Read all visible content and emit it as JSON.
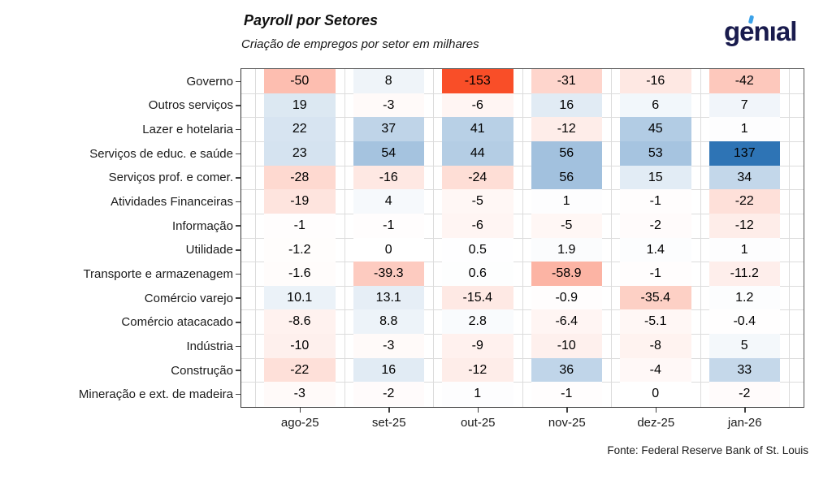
{
  "logo": {
    "text": "genıal",
    "text_color": "#191B4D",
    "accent_color": "#3BA2E9"
  },
  "chart_data": {
    "type": "heatmap",
    "title": "Payroll por Setores",
    "subtitle": "Criação de empregos por setor em milhares",
    "columns": [
      "ago-25",
      "set-25",
      "out-25",
      "nov-25",
      "dez-25",
      "jan-26"
    ],
    "rows": [
      {
        "label": "Governo",
        "values": [
          -50,
          8,
          -153,
          -31,
          -16,
          -42
        ]
      },
      {
        "label": "Outros serviços",
        "values": [
          19,
          -3,
          -6,
          16,
          6,
          7
        ]
      },
      {
        "label": "Lazer e hotelaria",
        "values": [
          22,
          37,
          41,
          -12,
          45,
          1
        ]
      },
      {
        "label": "Serviços de educ. e saúde",
        "values": [
          23,
          54,
          44,
          56,
          53,
          137
        ]
      },
      {
        "label": "Serviços prof. e comer.",
        "values": [
          -28,
          -16,
          -24,
          56,
          15,
          34
        ]
      },
      {
        "label": "Atividades Financeiras",
        "values": [
          -19,
          4,
          -5,
          1,
          -1,
          -22
        ]
      },
      {
        "label": "Informação",
        "values": [
          -1,
          -1,
          -6,
          -5,
          -2,
          -12
        ]
      },
      {
        "label": "Utilidade",
        "values": [
          -1.2,
          0,
          0.5,
          1.9,
          1.4,
          1
        ]
      },
      {
        "label": "Transporte e armazenagem",
        "values": [
          -1.6,
          -39.3,
          0.6,
          -58.9,
          -1,
          -11.2
        ]
      },
      {
        "label": "Comércio varejo",
        "values": [
          10.1,
          13.1,
          -15.4,
          -0.9,
          -35.4,
          1.2
        ]
      },
      {
        "label": "Comércio atacacado",
        "values": [
          -8.6,
          8.8,
          2.8,
          -6.4,
          -5.1,
          -0.4
        ]
      },
      {
        "label": "Indústria",
        "values": [
          -10,
          -3,
          -9,
          -10,
          -8,
          5
        ]
      },
      {
        "label": "Construção",
        "values": [
          -22,
          16,
          -12,
          36,
          -4,
          33
        ]
      },
      {
        "label": "Mineração e ext. de madeira",
        "values": [
          -3,
          -2,
          1,
          -1,
          0,
          -2
        ]
      }
    ],
    "color_scale": {
      "negative": "#F94E28",
      "midpoint": "#FFFFFF",
      "positive": "#2E74B5",
      "neg_max": 153,
      "pos_max": 137,
      "gamma": 0.9
    },
    "grid": true,
    "legend_position": "none",
    "source": "Fonte: Federal Reserve Bank of St. Louis"
  }
}
